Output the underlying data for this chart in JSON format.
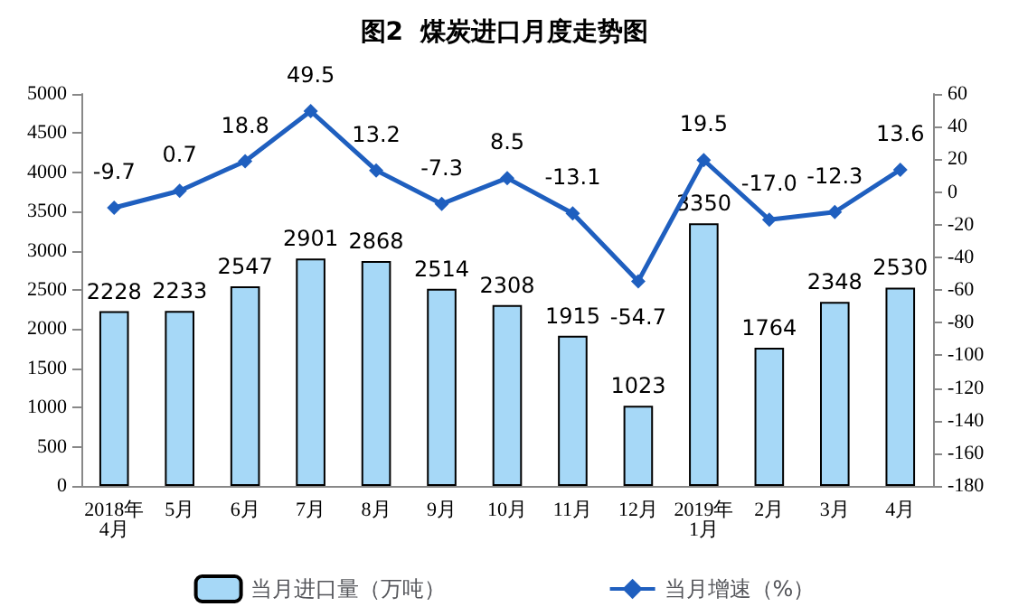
{
  "chart_data": {
    "type": "bar",
    "title": "图2  煤炭进口月度走势图",
    "categories": [
      "2018年\n4月",
      "5月",
      "6月",
      "7月",
      "8月",
      "9月",
      "10月",
      "11月",
      "12月",
      "2019年\n1月",
      "2月",
      "3月",
      "4月"
    ],
    "series": [
      {
        "name": "当月进口量（万吨）",
        "color": "#a6d8f7",
        "values": [
          2228,
          2233,
          2547,
          2901,
          2868,
          2514,
          2308,
          1915,
          1023,
          3350,
          1764,
          2348,
          2530
        ]
      },
      {
        "name": "当月增速（%）",
        "type": "line",
        "axis": "y2",
        "color": "#1f5fbf",
        "values": [
          -9.7,
          0.7,
          18.8,
          49.5,
          13.2,
          -7.3,
          8.5,
          -13.1,
          -54.7,
          19.5,
          -17.0,
          -12.3,
          13.6
        ],
        "value_labels": [
          "-9.7",
          "0.7",
          "18.8",
          "49.5",
          "13.2",
          "-7.3",
          "8.5",
          "-13.1",
          "-54.7",
          "19.5",
          "-17.0",
          "-12.3",
          "13.6"
        ]
      }
    ],
    "ylim": [
      0,
      5000
    ],
    "yticks": [
      0,
      500,
      1000,
      1500,
      2000,
      2500,
      3000,
      3500,
      4000,
      4500,
      5000
    ],
    "y2lim": [
      -180,
      60
    ],
    "y2ticks": [
      -180,
      -160,
      -140,
      -120,
      -100,
      -80,
      -60,
      -40,
      -20,
      0,
      20,
      40,
      60
    ],
    "data_labels": true,
    "legend": "bottom",
    "marker": "diamond"
  }
}
